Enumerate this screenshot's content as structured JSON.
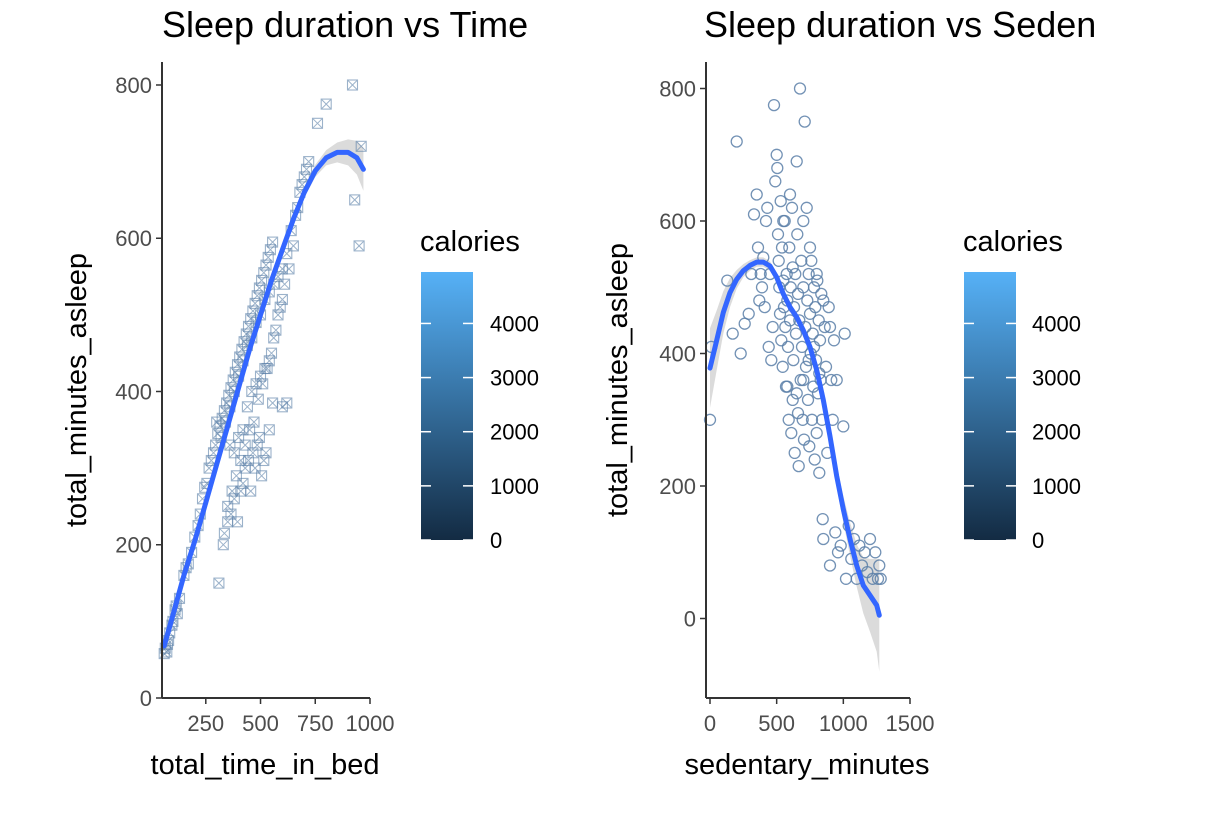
{
  "chart_data": [
    {
      "type": "scatter",
      "title": "Sleep duration vs Time",
      "xlabel": "total_time_in_bed",
      "ylabel": "total_minutes_asleep",
      "xlim": [
        50,
        1000
      ],
      "ylim": [
        0,
        830
      ],
      "x_ticks": [
        250,
        500,
        750,
        1000
      ],
      "y_ticks": [
        0,
        200,
        400,
        600,
        800
      ],
      "x_tick_labels": [
        "250",
        "500",
        "750",
        "1000"
      ],
      "y_tick_labels": [
        "0",
        "200",
        "400",
        "600",
        "800"
      ],
      "marker": "square-cross",
      "point_color": "#5a7fa8",
      "smooth_color": "#3366ff",
      "band_color": "#bdbdbd",
      "points": [
        [
          60,
          58
        ],
        [
          65,
          65
        ],
        [
          72,
          60
        ],
        [
          75,
          70
        ],
        [
          80,
          75
        ],
        [
          85,
          85
        ],
        [
          95,
          95
        ],
        [
          100,
          100
        ],
        [
          110,
          115
        ],
        [
          115,
          120
        ],
        [
          120,
          110
        ],
        [
          130,
          130
        ],
        [
          150,
          160
        ],
        [
          160,
          170
        ],
        [
          170,
          175
        ],
        [
          185,
          190
        ],
        [
          200,
          210
        ],
        [
          215,
          225
        ],
        [
          225,
          240
        ],
        [
          235,
          260
        ],
        [
          245,
          275
        ],
        [
          255,
          280
        ],
        [
          265,
          300
        ],
        [
          275,
          310
        ],
        [
          285,
          320
        ],
        [
          295,
          330
        ],
        [
          305,
          345
        ],
        [
          315,
          355
        ],
        [
          325,
          365
        ],
        [
          335,
          375
        ],
        [
          345,
          385
        ],
        [
          355,
          395
        ],
        [
          365,
          405
        ],
        [
          375,
          415
        ],
        [
          385,
          425
        ],
        [
          395,
          435
        ],
        [
          405,
          445
        ],
        [
          415,
          455
        ],
        [
          425,
          465
        ],
        [
          435,
          475
        ],
        [
          445,
          485
        ],
        [
          455,
          495
        ],
        [
          465,
          505
        ],
        [
          475,
          515
        ],
        [
          485,
          525
        ],
        [
          495,
          535
        ],
        [
          505,
          545
        ],
        [
          515,
          555
        ],
        [
          525,
          565
        ],
        [
          535,
          575
        ],
        [
          545,
          585
        ],
        [
          555,
          595
        ],
        [
          300,
          360
        ],
        [
          320,
          340
        ],
        [
          340,
          360
        ],
        [
          360,
          380
        ],
        [
          380,
          400
        ],
        [
          400,
          420
        ],
        [
          420,
          440
        ],
        [
          440,
          460
        ],
        [
          460,
          470
        ],
        [
          480,
          490
        ],
        [
          500,
          500
        ],
        [
          520,
          520
        ],
        [
          540,
          530
        ],
        [
          560,
          540
        ],
        [
          580,
          550
        ],
        [
          600,
          560
        ],
        [
          620,
          580
        ],
        [
          640,
          610
        ],
        [
          660,
          630
        ],
        [
          680,
          660
        ],
        [
          700,
          680
        ],
        [
          720,
          700
        ],
        [
          760,
          750
        ],
        [
          800,
          775
        ],
        [
          920,
          800
        ],
        [
          930,
          650
        ],
        [
          950,
          590
        ],
        [
          960,
          720
        ],
        [
          310,
          150
        ],
        [
          335,
          215
        ],
        [
          350,
          230
        ],
        [
          365,
          240
        ],
        [
          380,
          260
        ],
        [
          395,
          230
        ],
        [
          410,
          270
        ],
        [
          420,
          280
        ],
        [
          430,
          300
        ],
        [
          445,
          310
        ],
        [
          455,
          270
        ],
        [
          465,
          320
        ],
        [
          475,
          300
        ],
        [
          485,
          330
        ],
        [
          495,
          340
        ],
        [
          505,
          290
        ],
        [
          515,
          310
        ],
        [
          525,
          320
        ],
        [
          540,
          350
        ],
        [
          555,
          385
        ],
        [
          600,
          380
        ],
        [
          620,
          385
        ],
        [
          360,
          330
        ],
        [
          380,
          320
        ],
        [
          400,
          340
        ],
        [
          420,
          350
        ],
        [
          440,
          380
        ],
        [
          460,
          400
        ],
        [
          480,
          410
        ],
        [
          500,
          420
        ],
        [
          520,
          430
        ],
        [
          540,
          440
        ],
        [
          560,
          470
        ],
        [
          580,
          500
        ],
        [
          600,
          520
        ],
        [
          330,
          200
        ],
        [
          350,
          250
        ],
        [
          370,
          270
        ],
        [
          390,
          290
        ],
        [
          410,
          310
        ],
        [
          430,
          330
        ],
        [
          450,
          350
        ],
        [
          470,
          360
        ],
        [
          490,
          390
        ],
        [
          510,
          410
        ],
        [
          530,
          430
        ],
        [
          550,
          450
        ],
        [
          570,
          480
        ],
        [
          590,
          510
        ],
        [
          610,
          540
        ],
        [
          630,
          560
        ],
        [
          650,
          590
        ],
        [
          670,
          640
        ],
        [
          690,
          670
        ],
        [
          710,
          690
        ]
      ],
      "smooth": [
        [
          60,
          68
        ],
        [
          100,
          108
        ],
        [
          150,
          160
        ],
        [
          200,
          205
        ],
        [
          250,
          255
        ],
        [
          300,
          305
        ],
        [
          350,
          355
        ],
        [
          400,
          405
        ],
        [
          450,
          455
        ],
        [
          500,
          500
        ],
        [
          550,
          545
        ],
        [
          600,
          585
        ],
        [
          650,
          625
        ],
        [
          700,
          660
        ],
        [
          750,
          688
        ],
        [
          800,
          705
        ],
        [
          850,
          712
        ],
        [
          900,
          712
        ],
        [
          940,
          705
        ],
        [
          970,
          690
        ]
      ],
      "band_halfwidth": [
        6,
        5,
        4,
        4,
        4,
        4,
        3,
        3,
        3,
        3,
        4,
        5,
        6,
        7,
        8,
        10,
        13,
        17,
        22,
        28
      ],
      "legend": {
        "title": "calories",
        "ticks": [
          0,
          1000,
          2000,
          3000,
          4000
        ],
        "tick_labels": [
          "0",
          "1000",
          "2000",
          "3000",
          "4000"
        ],
        "max": 4950,
        "color_low": "#132b43",
        "color_high": "#56b1f7"
      }
    },
    {
      "type": "scatter",
      "title": "Sleep duration vs Seden",
      "xlabel": "sedentary_minutes",
      "ylabel": "total_minutes_asleep",
      "xlim": [
        -30,
        1500
      ],
      "ylim": [
        -120,
        840
      ],
      "x_ticks": [
        0,
        500,
        1000,
        1500
      ],
      "y_ticks": [
        0,
        200,
        400,
        600,
        800
      ],
      "x_tick_labels": [
        "0",
        "500",
        "1000",
        "1500"
      ],
      "y_tick_labels": [
        "0",
        "200",
        "400",
        "600",
        "800"
      ],
      "marker": "circle",
      "point_color": "#5a7fa8",
      "smooth_color": "#3366ff",
      "band_color": "#bdbdbd",
      "points": [
        [
          0,
          300
        ],
        [
          10,
          410
        ],
        [
          130,
          510
        ],
        [
          170,
          430
        ],
        [
          200,
          720
        ],
        [
          230,
          400
        ],
        [
          260,
          445
        ],
        [
          290,
          460
        ],
        [
          310,
          520
        ],
        [
          330,
          610
        ],
        [
          350,
          640
        ],
        [
          360,
          560
        ],
        [
          370,
          480
        ],
        [
          380,
          520
        ],
        [
          390,
          500
        ],
        [
          400,
          545
        ],
        [
          410,
          470
        ],
        [
          420,
          600
        ],
        [
          430,
          620
        ],
        [
          440,
          410
        ],
        [
          450,
          520
        ],
        [
          460,
          390
        ],
        [
          470,
          440
        ],
        [
          480,
          775
        ],
        [
          490,
          660
        ],
        [
          500,
          700
        ],
        [
          505,
          680
        ],
        [
          510,
          580
        ],
        [
          515,
          540
        ],
        [
          520,
          500
        ],
        [
          525,
          460
        ],
        [
          530,
          630
        ],
        [
          535,
          420
        ],
        [
          540,
          560
        ],
        [
          545,
          380
        ],
        [
          550,
          510
        ],
        [
          555,
          470
        ],
        [
          560,
          600
        ],
        [
          565,
          440
        ],
        [
          570,
          350
        ],
        [
          575,
          520
        ],
        [
          580,
          480
        ],
        [
          585,
          410
        ],
        [
          590,
          300
        ],
        [
          595,
          560
        ],
        [
          600,
          450
        ],
        [
          605,
          500
        ],
        [
          610,
          280
        ],
        [
          615,
          620
        ],
        [
          620,
          530
        ],
        [
          625,
          390
        ],
        [
          630,
          470
        ],
        [
          635,
          250
        ],
        [
          640,
          520
        ],
        [
          645,
          430
        ],
        [
          650,
          340
        ],
        [
          655,
          580
        ],
        [
          660,
          490
        ],
        [
          665,
          230
        ],
        [
          670,
          450
        ],
        [
          675,
          800
        ],
        [
          680,
          360
        ],
        [
          685,
          540
        ],
        [
          690,
          410
        ],
        [
          695,
          300
        ],
        [
          700,
          500
        ],
        [
          705,
          270
        ],
        [
          710,
          750
        ],
        [
          715,
          440
        ],
        [
          720,
          380
        ],
        [
          725,
          620
        ],
        [
          730,
          480
        ],
        [
          735,
          330
        ],
        [
          740,
          520
        ],
        [
          745,
          260
        ],
        [
          750,
          460
        ],
        [
          755,
          400
        ],
        [
          760,
          540
        ],
        [
          765,
          300
        ],
        [
          770,
          430
        ],
        [
          775,
          350
        ],
        [
          780,
          500
        ],
        [
          785,
          240
        ],
        [
          790,
          470
        ],
        [
          795,
          390
        ],
        [
          800,
          280
        ],
        [
          805,
          510
        ],
        [
          810,
          340
        ],
        [
          815,
          450
        ],
        [
          820,
          220
        ],
        [
          825,
          420
        ],
        [
          830,
          360
        ],
        [
          835,
          490
        ],
        [
          840,
          300
        ],
        [
          845,
          150
        ],
        [
          850,
          120
        ],
        [
          860,
          440
        ],
        [
          870,
          380
        ],
        [
          880,
          250
        ],
        [
          890,
          470
        ],
        [
          900,
          80
        ],
        [
          910,
          360
        ],
        [
          920,
          300
        ],
        [
          930,
          420
        ],
        [
          940,
          130
        ],
        [
          950,
          360
        ],
        [
          960,
          100
        ],
        [
          980,
          110
        ],
        [
          1000,
          290
        ],
        [
          1010,
          430
        ],
        [
          1020,
          60
        ],
        [
          1040,
          140
        ],
        [
          1060,
          90
        ],
        [
          1080,
          120
        ],
        [
          1100,
          60
        ],
        [
          1120,
          110
        ],
        [
          1140,
          80
        ],
        [
          1160,
          100
        ],
        [
          1180,
          70
        ],
        [
          1200,
          120
        ],
        [
          1220,
          60
        ],
        [
          1240,
          100
        ],
        [
          1260,
          60
        ],
        [
          1270,
          80
        ],
        [
          1280,
          60
        ],
        [
          550,
          600
        ],
        [
          600,
          640
        ],
        [
          650,
          690
        ],
        [
          700,
          600
        ],
        [
          750,
          560
        ],
        [
          800,
          520
        ],
        [
          850,
          480
        ],
        [
          900,
          440
        ],
        [
          580,
          350
        ],
        [
          620,
          330
        ],
        [
          660,
          310
        ],
        [
          700,
          360
        ],
        [
          740,
          390
        ],
        [
          780,
          410
        ],
        [
          820,
          370
        ]
      ],
      "smooth": [
        [
          0,
          378
        ],
        [
          50,
          420
        ],
        [
          100,
          462
        ],
        [
          150,
          492
        ],
        [
          200,
          512
        ],
        [
          250,
          525
        ],
        [
          300,
          533
        ],
        [
          350,
          538
        ],
        [
          400,
          538
        ],
        [
          450,
          532
        ],
        [
          500,
          515
        ],
        [
          550,
          490
        ],
        [
          600,
          470
        ],
        [
          650,
          455
        ],
        [
          700,
          435
        ],
        [
          750,
          410
        ],
        [
          800,
          375
        ],
        [
          850,
          330
        ],
        [
          900,
          275
        ],
        [
          950,
          215
        ],
        [
          1000,
          165
        ],
        [
          1050,
          120
        ],
        [
          1100,
          80
        ],
        [
          1150,
          50
        ],
        [
          1200,
          35
        ],
        [
          1250,
          20
        ],
        [
          1270,
          5
        ]
      ],
      "band_halfwidth": [
        60,
        45,
        32,
        22,
        14,
        10,
        8,
        7,
        7,
        7,
        7,
        7,
        7,
        7,
        7,
        8,
        9,
        11,
        13,
        16,
        20,
        25,
        32,
        42,
        55,
        70,
        85
      ],
      "legend": {
        "title": "calories",
        "ticks": [
          0,
          1000,
          2000,
          3000,
          4000
        ],
        "tick_labels": [
          "0",
          "1000",
          "2000",
          "3000",
          "4000"
        ],
        "max": 4950,
        "color_low": "#132b43",
        "color_high": "#56b1f7"
      }
    }
  ]
}
